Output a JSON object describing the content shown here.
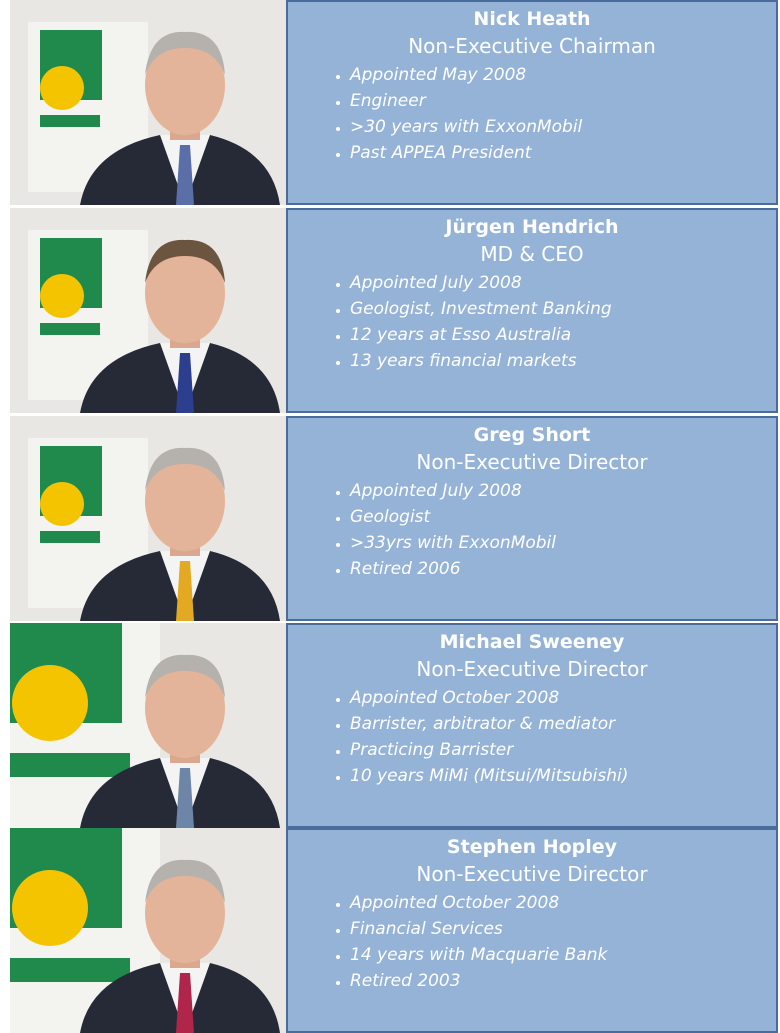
{
  "members": [
    {
      "name": "Nick Heath",
      "role": "Non-Executive Chairman",
      "points": [
        "Appointed May 2008",
        "Engineer",
        ">30 years  with ExxonMobil",
        "Past APPEA President"
      ]
    },
    {
      "name": "Jürgen Hendrich",
      "role": "MD & CEO",
      "points": [
        "Appointed July 2008",
        "Geologist, Investment Banking",
        "12 years at Esso Australia",
        "13 years financial markets"
      ]
    },
    {
      "name": "Greg Short",
      "role": "Non-Executive Director",
      "points": [
        "Appointed  July 2008",
        "Geologist",
        ">33yrs  with ExxonMobil",
        "Retired 2006"
      ]
    },
    {
      "name": "Michael Sweeney",
      "role": "Non-Executive Director",
      "points": [
        "Appointed October 2008",
        "Barrister, arbitrator & mediator",
        "Practicing Barrister",
        "10 years  MiMi (Mitsui/Mitsubishi)"
      ]
    },
    {
      "name": "Stephen Hopley",
      "role": "Non-Executive Director",
      "points": [
        "Appointed  October 2008",
        "Financial Services",
        "14 years with Macquarie Bank",
        "Retired 2003"
      ]
    }
  ]
}
